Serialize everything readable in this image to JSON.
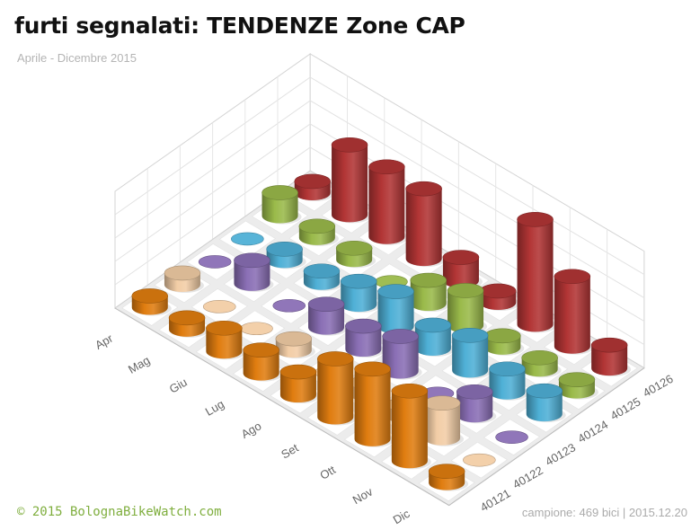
{
  "header": {
    "title": "furti segnalati:  TENDENZE Zone CAP",
    "subtitle": "Aprile - Dicembre 2015"
  },
  "footer": {
    "credit": "© 2015  BolognaBikeWatch.com",
    "sample": "campione: 469 bici  |  2015.12.20"
  },
  "chart_data": {
    "type": "bar",
    "subtype": "3d-cylinder",
    "title": "furti segnalati:  TENDENZE Zone CAP",
    "subtitle": "Aprile - Dicembre 2015",
    "categories": [
      "Apr",
      "Mag",
      "Giu",
      "Lug",
      "Ago",
      "Set",
      "Ott",
      "Nov",
      "Dic"
    ],
    "series": [
      {
        "name": "40121",
        "color": "#e07d10",
        "values": [
          1,
          1,
          2,
          2,
          2,
          5,
          6,
          6,
          1
        ]
      },
      {
        "name": "40122",
        "color": "#f2cda6",
        "values": [
          1,
          0,
          0,
          1,
          0,
          1,
          1,
          3,
          0
        ]
      },
      {
        "name": "40123",
        "color": "#8a6fb5",
        "values": [
          0,
          2,
          0,
          2,
          2,
          3,
          0,
          2,
          0
        ]
      },
      {
        "name": "40124",
        "color": "#4fb0d6",
        "values": [
          0,
          1,
          1,
          2,
          3,
          2,
          3,
          2,
          2
        ]
      },
      {
        "name": "40125",
        "color": "#9aba4a",
        "values": [
          2,
          1,
          1,
          0,
          2,
          3,
          1,
          1,
          1
        ]
      },
      {
        "name": "40126",
        "color": "#b23535",
        "values": [
          1,
          6,
          6,
          6,
          2,
          1,
          9,
          6,
          2
        ]
      }
    ],
    "zlim": [
      0,
      10
    ],
    "grid": true,
    "legend": "none"
  }
}
